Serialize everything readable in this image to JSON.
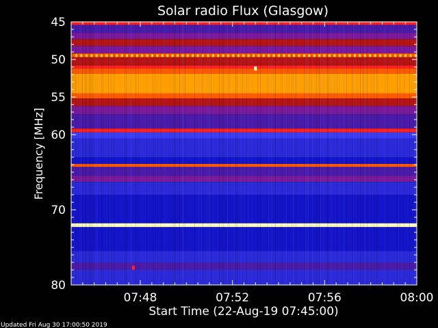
{
  "chart_data": {
    "type": "heatmap",
    "title": "Solar radio Flux (Glasgow)",
    "xlabel": "Start Time (22-Aug-19 07:45:00)",
    "ylabel": "Frequency [MHz]",
    "x_unit": "time",
    "xlim": [
      "07:45:00",
      "08:00:00"
    ],
    "ylim": [
      45,
      80
    ],
    "y_inverted": true,
    "x_ticks": [
      "07:48",
      "07:52",
      "07:56",
      "08:00"
    ],
    "y_ticks": [
      45,
      50,
      55,
      60,
      70,
      80
    ],
    "colormap": [
      "#1414c8",
      "#2a2ad8",
      "#3c3cf0",
      "#4a1aa8",
      "#7a1a9a",
      "#b41414",
      "#ff2020",
      "#ff5a00",
      "#ffa000",
      "#ffd040",
      "#ffffc0"
    ],
    "bands": [
      {
        "f0": 45.0,
        "f1": 45.4,
        "level": 6
      },
      {
        "f0": 45.4,
        "f1": 46.5,
        "level": 3
      },
      {
        "f0": 46.5,
        "f1": 47.3,
        "level": 4
      },
      {
        "f0": 47.3,
        "f1": 48.2,
        "level": 5
      },
      {
        "f0": 48.2,
        "f1": 49.2,
        "level": 4
      },
      {
        "f0": 49.2,
        "f1": 49.7,
        "level": 7
      },
      {
        "f0": 49.7,
        "f1": 50.8,
        "level": 5
      },
      {
        "f0": 50.8,
        "f1": 51.2,
        "level": 6
      },
      {
        "f0": 51.2,
        "f1": 51.9,
        "level": 7
      },
      {
        "f0": 51.9,
        "f1": 54.5,
        "level": 8
      },
      {
        "f0": 54.5,
        "f1": 55.2,
        "level": 7
      },
      {
        "f0": 55.2,
        "f1": 56.2,
        "level": 5
      },
      {
        "f0": 56.2,
        "f1": 57.3,
        "level": 4
      },
      {
        "f0": 57.3,
        "f1": 59.2,
        "level": 3
      },
      {
        "f0": 59.2,
        "f1": 59.7,
        "level": 6
      },
      {
        "f0": 59.7,
        "f1": 60.5,
        "level": 2
      },
      {
        "f0": 60.5,
        "f1": 63.0,
        "level": 1
      },
      {
        "f0": 63.0,
        "f1": 63.9,
        "level": 0
      },
      {
        "f0": 63.9,
        "f1": 64.3,
        "level": 7
      },
      {
        "f0": 64.3,
        "f1": 65.5,
        "level": 3
      },
      {
        "f0": 65.5,
        "f1": 66.3,
        "level": 4
      },
      {
        "f0": 66.3,
        "f1": 68.0,
        "level": 1
      },
      {
        "f0": 68.0,
        "f1": 71.8,
        "level": 0
      },
      {
        "f0": 71.8,
        "f1": 72.3,
        "level": 10
      },
      {
        "f0": 72.3,
        "f1": 75.5,
        "level": 0
      },
      {
        "f0": 75.5,
        "f1": 77.0,
        "level": 1
      },
      {
        "f0": 77.0,
        "f1": 78.0,
        "level": 3
      },
      {
        "f0": 78.0,
        "f1": 80.0,
        "level": 1
      }
    ],
    "dotted_bands": [
      {
        "f": 49.5,
        "level": 9
      }
    ],
    "spots": [
      {
        "time": "07:53:00",
        "f": 51.2,
        "level": 10
      },
      {
        "time": "07:47:42",
        "f": 77.7,
        "level": 6
      }
    ]
  },
  "footer": {
    "updated": "Updated Fri Aug 30 17:00:50 2019"
  }
}
